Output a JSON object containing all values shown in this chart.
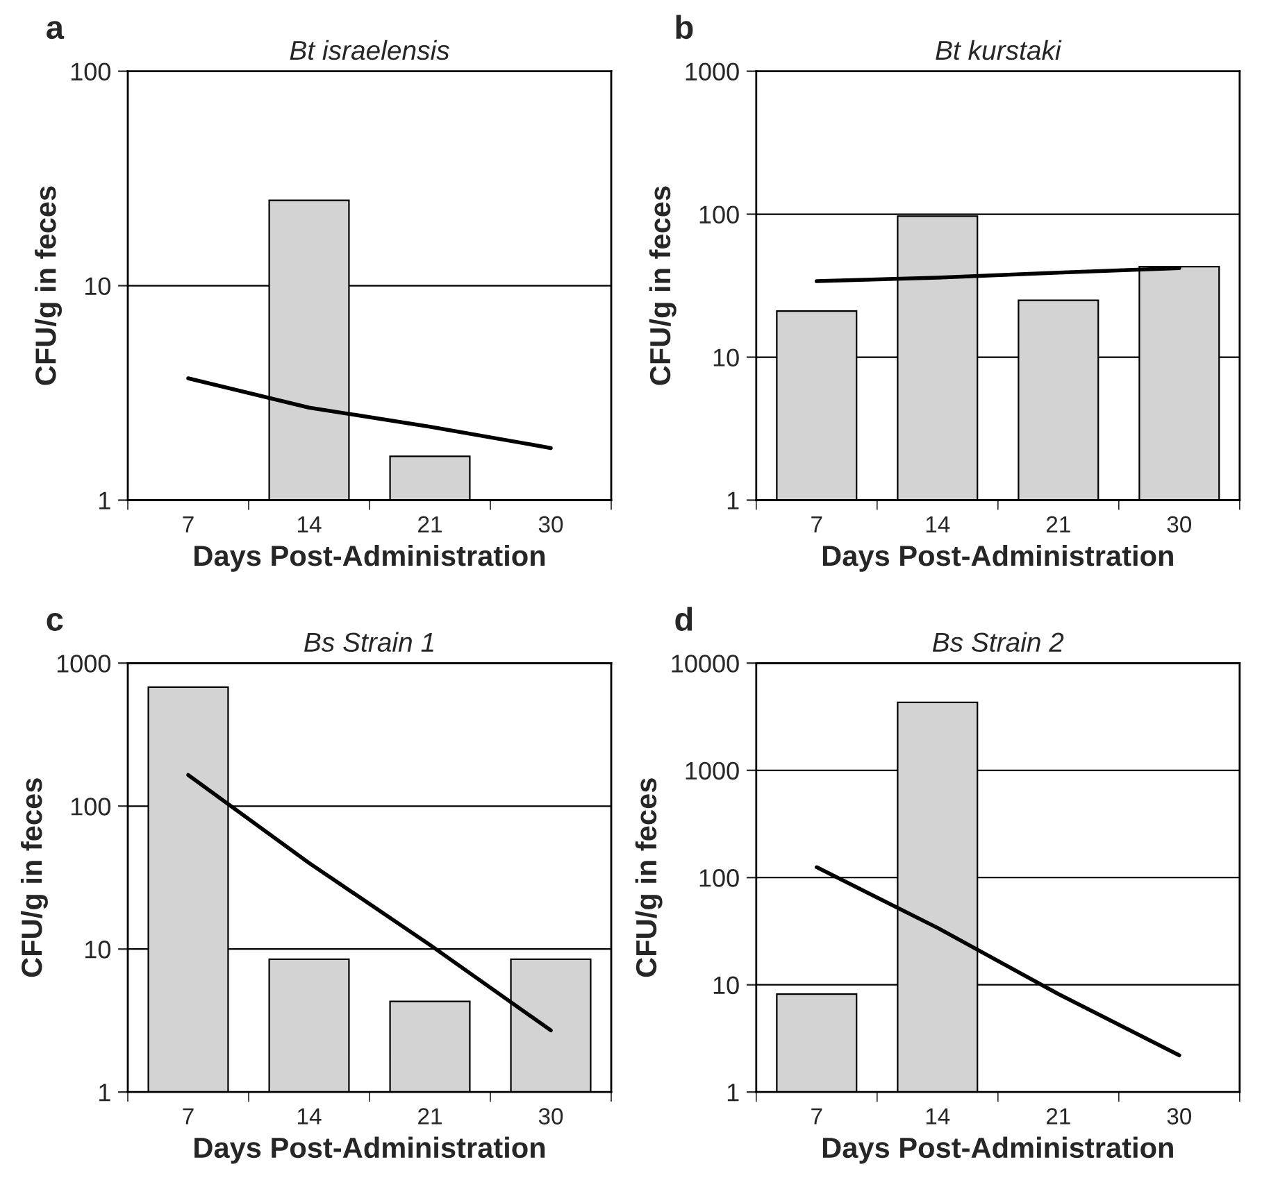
{
  "chart_data": [
    {
      "type": "bar",
      "title": "Bt israelensis",
      "xlabel": "Days Post-Administration",
      "ylabel": "CFU/g in feces",
      "annotations": [
        "a"
      ],
      "categories": [
        "7",
        "14",
        "21",
        "30"
      ],
      "log": "y",
      "ylim": [
        1,
        100
      ],
      "yticks": [
        1,
        10,
        100
      ],
      "grid": "y",
      "series": [
        {
          "color": "#d3d3d3",
          "values": [
            null,
            25,
            1.6,
            null
          ]
        },
        {
          "type": "line",
          "color": "#000000",
          "values": [
            3.7,
            2.7,
            2.2,
            1.75
          ]
        }
      ]
    },
    {
      "type": "bar",
      "title": "Bt kurstaki",
      "xlabel": "Days Post-Administration",
      "ylabel": "CFU/g in feces",
      "annotations": [
        "b"
      ],
      "categories": [
        "7",
        "14",
        "21",
        "30"
      ],
      "log": "y",
      "ylim": [
        1,
        1000
      ],
      "yticks": [
        1,
        10,
        100,
        1000
      ],
      "grid": "y",
      "series": [
        {
          "color": "#d3d3d3",
          "values": [
            21,
            97,
            25,
            43
          ]
        },
        {
          "type": "line",
          "color": "#000000",
          "values": [
            34,
            36,
            39,
            42
          ]
        }
      ]
    },
    {
      "type": "bar",
      "title": "Bs Strain 1",
      "xlabel": "Days Post-Administration",
      "ylabel": "CFU/g in feces",
      "annotations": [
        "c"
      ],
      "categories": [
        "7",
        "14",
        "21",
        "30"
      ],
      "log": "y",
      "ylim": [
        1,
        1000
      ],
      "yticks": [
        1,
        10,
        100,
        1000
      ],
      "grid": "y",
      "series": [
        {
          "color": "#d3d3d3",
          "values": [
            680,
            8.5,
            4.3,
            8.5
          ]
        },
        {
          "type": "line",
          "color": "#000000",
          "values": [
            165,
            40,
            10.7,
            2.7
          ]
        }
      ]
    },
    {
      "type": "bar",
      "title": "Bs Strain 2",
      "xlabel": "Days Post-Administration",
      "ylabel": "CFU/g in feces",
      "annotations": [
        "d"
      ],
      "categories": [
        "7",
        "14",
        "21",
        "30"
      ],
      "log": "y",
      "ylim": [
        1,
        10000
      ],
      "yticks": [
        1,
        10,
        100,
        1000,
        10000
      ],
      "grid": "y",
      "series": [
        {
          "color": "#d3d3d3",
          "values": [
            8.2,
            4300,
            null,
            null
          ]
        },
        {
          "type": "line",
          "color": "#000000",
          "values": [
            125,
            34,
            8.2,
            2.2
          ]
        }
      ]
    }
  ]
}
